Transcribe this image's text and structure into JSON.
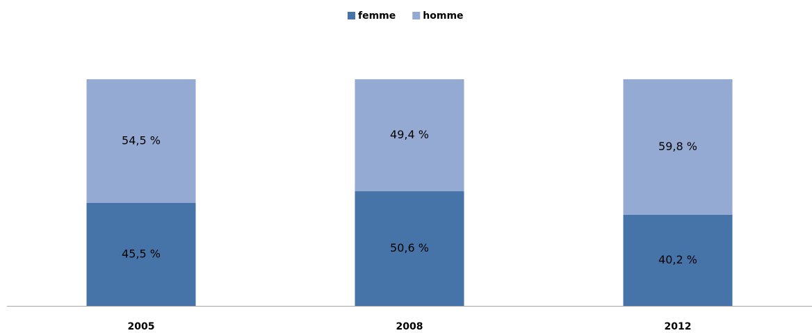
{
  "chart_data": {
    "type": "bar",
    "stacked": true,
    "categories": [
      "2005",
      "2008",
      "2012"
    ],
    "series": [
      {
        "name": "femme",
        "color": "#4674a8",
        "values": [
          45.5,
          50.6,
          40.2
        ],
        "value_labels": [
          "45,5 %",
          "50,6 %",
          "40,2 %"
        ]
      },
      {
        "name": "homme",
        "color": "#95aad2",
        "values": [
          54.5,
          49.4,
          59.8
        ],
        "value_labels": [
          "54,5 %",
          "49,4 %",
          "59,8 %"
        ]
      }
    ],
    "ylim": [
      0,
      100
    ],
    "legend": "top"
  }
}
